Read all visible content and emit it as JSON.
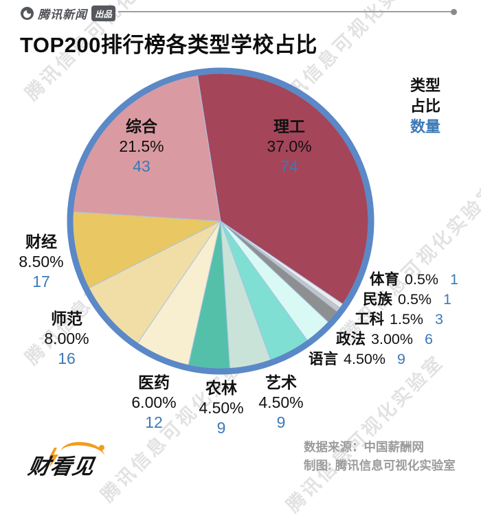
{
  "header": {
    "brand": "腾讯新闻",
    "brand_badge": "出品",
    "title": "TOP200排行榜各类型学校占比"
  },
  "legend": {
    "type_label": "类型",
    "share_label": "占比",
    "count_label": "数量"
  },
  "chart_data": {
    "type": "pie",
    "title": "TOP200排行榜各类型学校占比",
    "total_schools": 200,
    "start_angle_deg": -9,
    "ring_color": "#5B88C6",
    "divider_color": "#A9C2E2",
    "count_color": "#3B79B7",
    "slices": [
      {
        "label": "理工",
        "share": "37.0%",
        "value": 37.0,
        "count": 74,
        "color": "#A4455A"
      },
      {
        "label": "体育",
        "share": "0.5%",
        "value": 0.5,
        "count": 1,
        "color": "#ECECEC"
      },
      {
        "label": "民族",
        "share": "0.5%",
        "value": 0.5,
        "count": 1,
        "color": "#C4C4C6"
      },
      {
        "label": "工科",
        "share": "1.5%",
        "value": 1.5,
        "count": 3,
        "color": "#8E8F91"
      },
      {
        "label": "政法",
        "share": "3.00%",
        "value": 3.0,
        "count": 6,
        "color": "#D9FAF4"
      },
      {
        "label": "语言",
        "share": "4.50%",
        "value": 4.5,
        "count": 9,
        "color": "#7FDFD2"
      },
      {
        "label": "艺术",
        "share": "4.50%",
        "value": 4.5,
        "count": 9,
        "color": "#C9E3D9"
      },
      {
        "label": "农林",
        "share": "4.50%",
        "value": 4.5,
        "count": 9,
        "color": "#54C0A9"
      },
      {
        "label": "医药",
        "share": "6.00%",
        "value": 6.0,
        "count": 12,
        "color": "#F8EED0"
      },
      {
        "label": "师范",
        "share": "8.00%",
        "value": 8.0,
        "count": 16,
        "color": "#F1DEA6"
      },
      {
        "label": "财经",
        "share": "8.50%",
        "value": 8.5,
        "count": 17,
        "color": "#E9C763"
      },
      {
        "label": "综合",
        "share": "21.5%",
        "value": 21.5,
        "count": 43,
        "color": "#DA9AA2"
      }
    ]
  },
  "footer": {
    "logo_text": "财看见",
    "source": "数据来源：中国薪酬网",
    "credit": "制图: 腾讯信息可视化实验室"
  },
  "watermark": {
    "text": "腾讯信息可视化实验室"
  }
}
